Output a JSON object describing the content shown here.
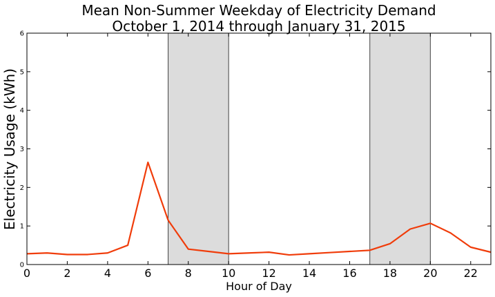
{
  "chart_data": {
    "type": "line",
    "title_line1": "Mean Non-Summer Weekday of Electricity Demand",
    "title_line2": "October 1, 2014 through January 31, 2015",
    "xlabel": "Hour of Day",
    "ylabel": "Electricity Usage (kWh)",
    "xlim": [
      0,
      23
    ],
    "ylim": [
      0,
      6
    ],
    "x_ticks": [
      0,
      2,
      4,
      6,
      8,
      10,
      12,
      14,
      16,
      18,
      20,
      22
    ],
    "y_ticks": [
      0,
      1,
      2,
      3,
      4,
      5,
      6
    ],
    "grid": false,
    "shaded_regions": [
      {
        "start": 7,
        "end": 10
      },
      {
        "start": 17,
        "end": 20
      }
    ],
    "shade_color": "#dcdcdc",
    "line_color": "#f03c0a",
    "x": [
      0,
      1,
      2,
      3,
      4,
      5,
      6,
      7,
      8,
      9,
      10,
      11,
      12,
      13,
      14,
      15,
      16,
      17,
      18,
      19,
      20,
      21,
      22,
      23
    ],
    "y": [
      0.28,
      0.3,
      0.26,
      0.26,
      0.3,
      0.5,
      2.65,
      1.15,
      0.4,
      0.34,
      0.28,
      0.3,
      0.32,
      0.25,
      0.28,
      0.31,
      0.34,
      0.37,
      0.54,
      0.92,
      1.07,
      0.82,
      0.45,
      0.32
    ]
  }
}
